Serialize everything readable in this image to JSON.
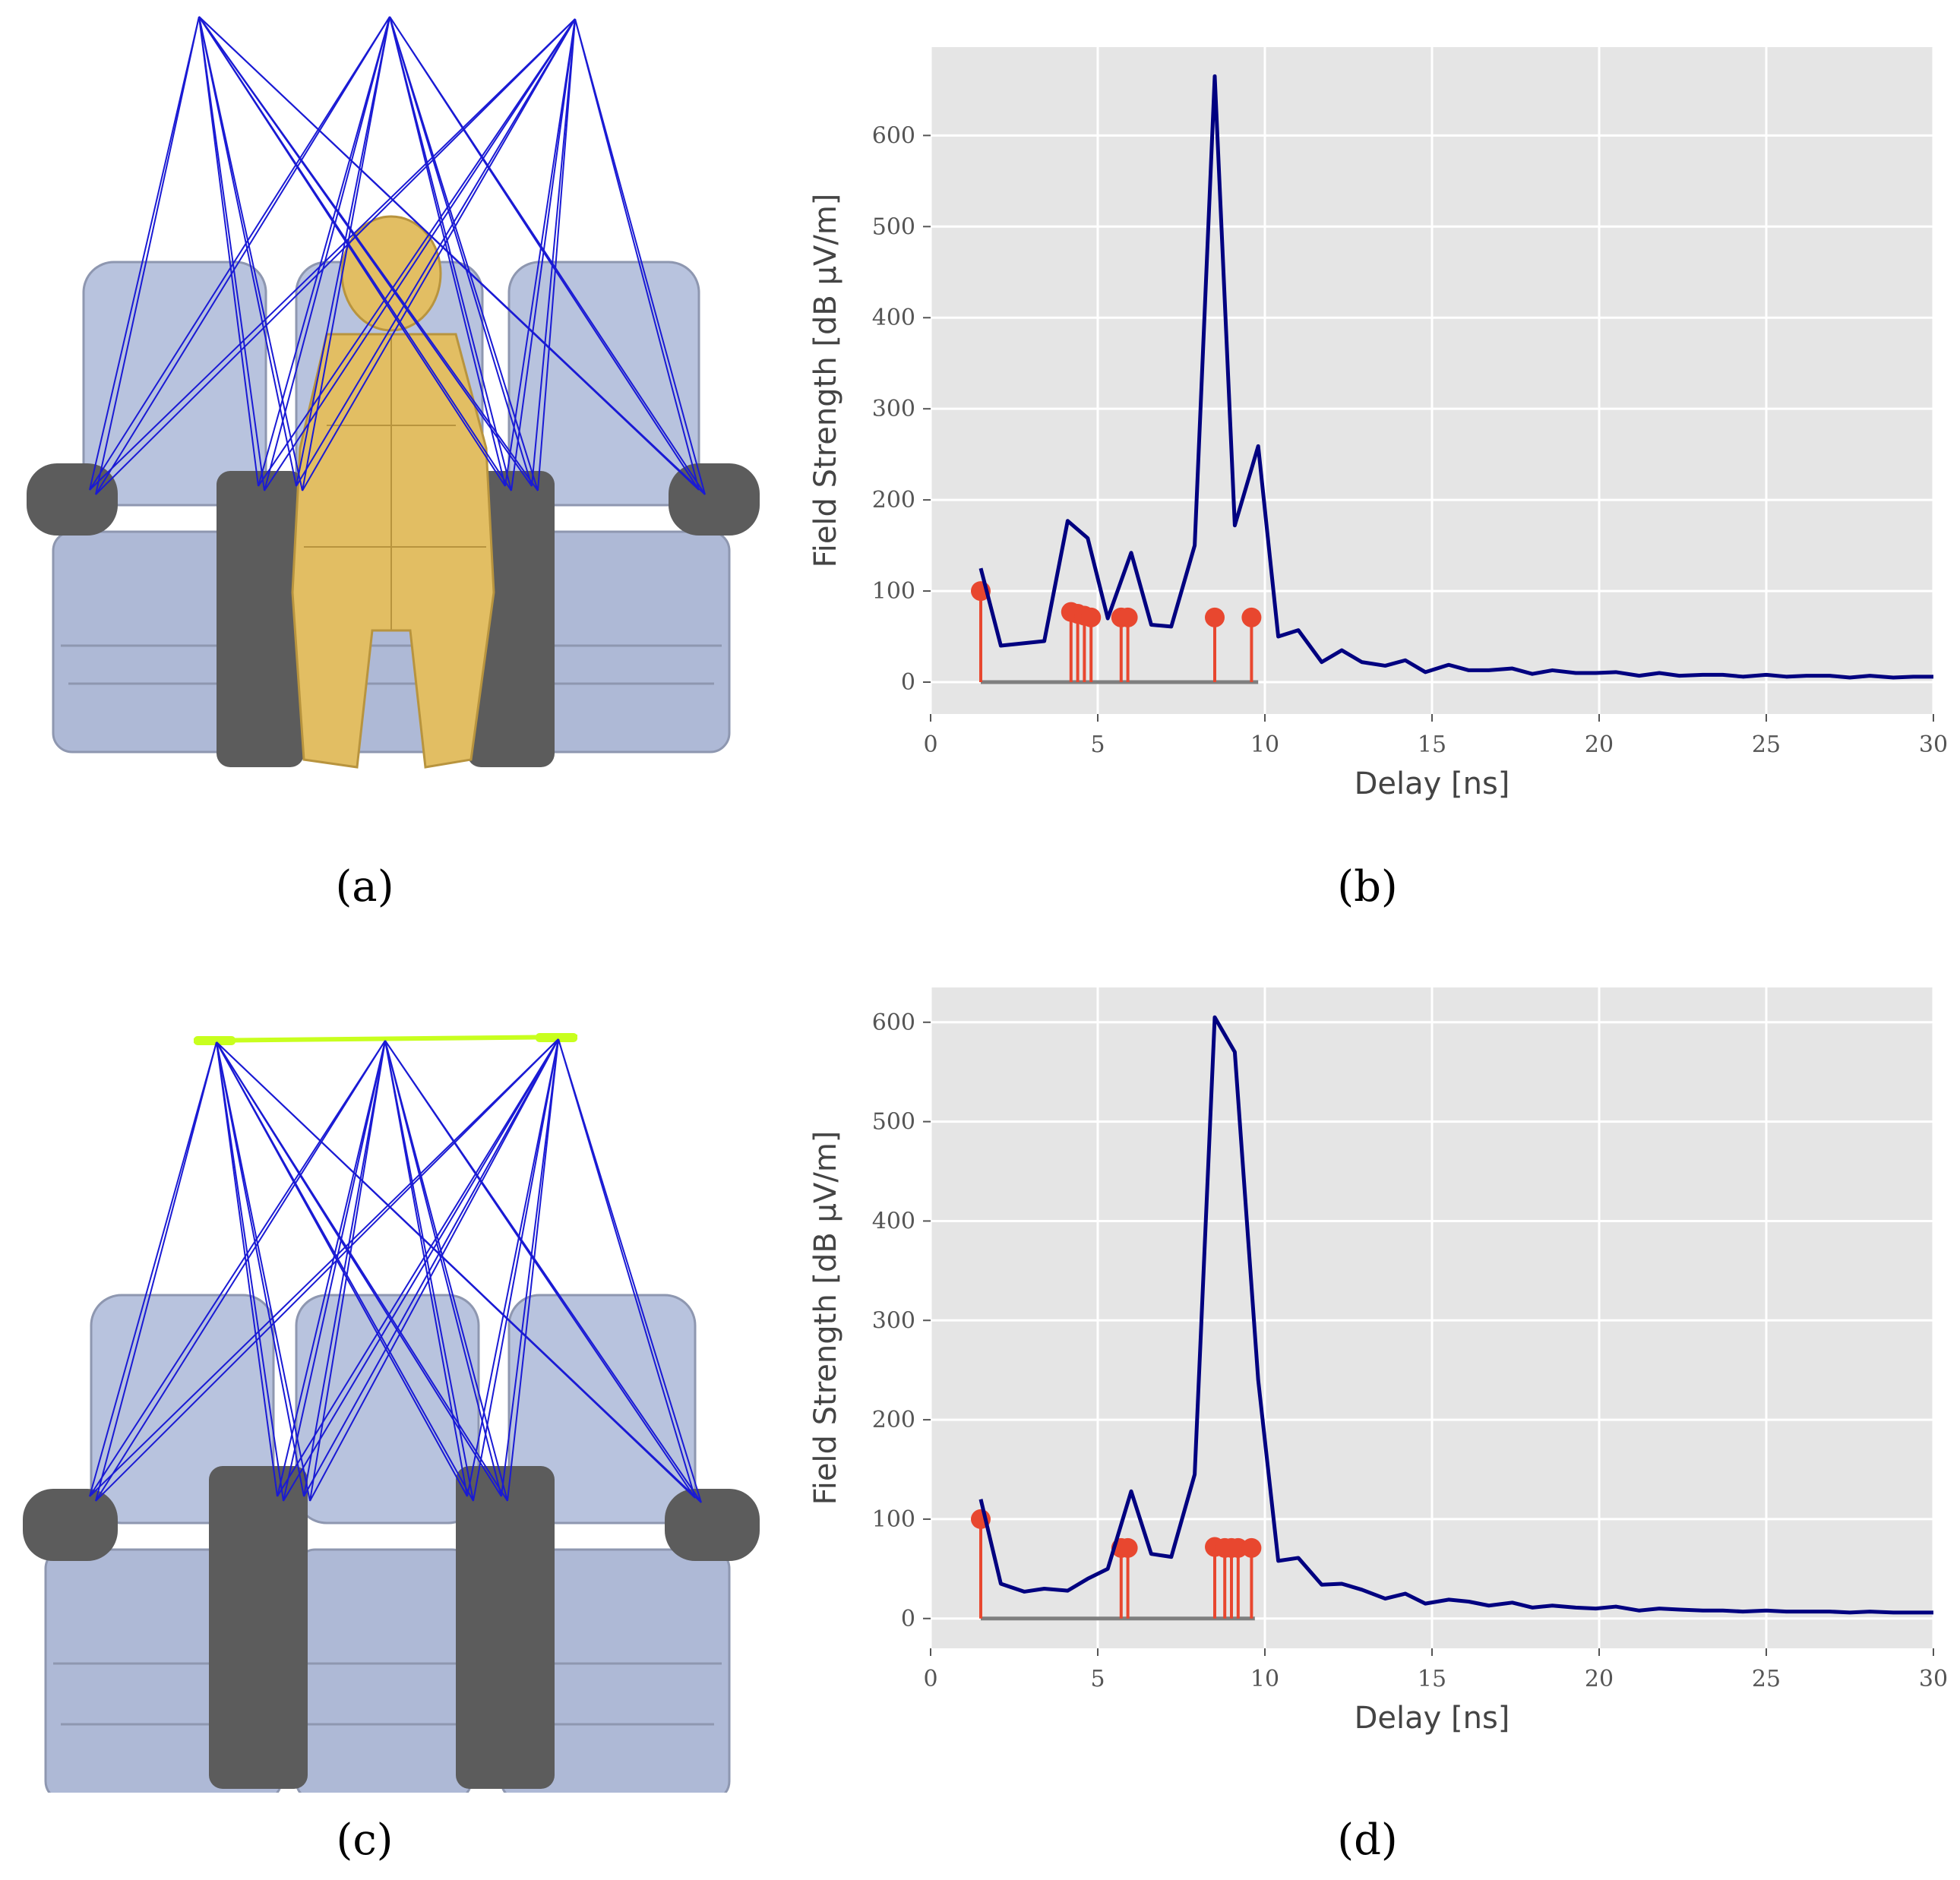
{
  "captions": {
    "a": "(a)",
    "b": "(b)",
    "c": "(c)",
    "d": "(d)"
  },
  "colors": {
    "panel_bg": "#e5e5e5",
    "grid": "#ffffff",
    "line": "#000080",
    "stem": "#e8472f",
    "baseline": "#7f7f7f",
    "ray": "#1a1ad4",
    "seat": "#b8c3de",
    "armrest": "#5c5c5c",
    "passenger": "#e2be63",
    "antenna": "#c8ff1e"
  },
  "icons": {
    "scene_a": "aircraft-seat-row-with-passenger-and-rays",
    "scene_c": "aircraft-seat-row-empty-with-rays"
  },
  "chart_data": [
    {
      "panel": "b",
      "type": "line",
      "xlabel": "Delay [ns]",
      "ylabel": "Field Strength [dB μV/m]",
      "xlim": [
        0,
        30
      ],
      "ylim": [
        -35,
        697
      ],
      "xticks": [
        0,
        5,
        10,
        15,
        20,
        25,
        30
      ],
      "yticks": [
        0,
        100,
        200,
        300,
        400,
        500,
        600
      ],
      "grid": true,
      "series": [
        {
          "kind": "line",
          "x": [
            1.5,
            2.1,
            3.4,
            4.1,
            4.7,
            5.3,
            6.0,
            6.6,
            7.2,
            7.9,
            8.5,
            9.1,
            9.8,
            10.4,
            11.0,
            11.7,
            12.3,
            12.9,
            13.6,
            14.2,
            14.8,
            15.5,
            16.1,
            16.7,
            17.4,
            18.0,
            18.6,
            19.3,
            19.9,
            20.5,
            21.2,
            21.8,
            22.4,
            23.1,
            23.7,
            24.3,
            25.0,
            25.6,
            26.2,
            26.9,
            27.5,
            28.1,
            28.8,
            29.4,
            30.0
          ],
          "y": [
            125,
            40,
            45,
            177,
            158,
            70,
            142,
            63,
            61,
            150,
            665,
            172,
            259,
            50,
            57,
            22,
            35,
            22,
            18,
            24,
            11,
            19,
            13,
            13,
            15,
            9,
            13,
            10,
            10,
            11,
            7,
            10,
            7,
            8,
            8,
            6,
            8,
            6,
            7,
            7,
            5,
            7,
            5,
            6,
            6
          ]
        },
        {
          "kind": "stem",
          "x": [
            1.5,
            4.2,
            4.4,
            4.6,
            4.8,
            5.7,
            5.9,
            8.5,
            9.6
          ],
          "y": [
            100,
            77,
            75,
            73,
            71,
            71,
            71,
            71,
            71
          ],
          "baseline_x": [
            1.5,
            9.8
          ]
        }
      ]
    },
    {
      "panel": "d",
      "type": "line",
      "xlabel": "Delay [ns]",
      "ylabel": "Field Strength [dB μV/m]",
      "xlim": [
        0,
        30
      ],
      "ylim": [
        -30,
        635
      ],
      "xticks": [
        0,
        5,
        10,
        15,
        20,
        25,
        30
      ],
      "yticks": [
        0,
        100,
        200,
        300,
        400,
        500,
        600
      ],
      "grid": true,
      "series": [
        {
          "kind": "line",
          "x": [
            1.5,
            2.1,
            2.8,
            3.4,
            4.1,
            4.7,
            5.3,
            6.0,
            6.6,
            7.2,
            7.9,
            8.5,
            9.1,
            9.8,
            10.4,
            11.0,
            11.7,
            12.3,
            12.9,
            13.6,
            14.2,
            14.8,
            15.5,
            16.1,
            16.7,
            17.4,
            18.0,
            18.6,
            19.3,
            19.9,
            20.5,
            21.2,
            21.8,
            22.4,
            23.1,
            23.7,
            24.3,
            25.0,
            25.6,
            26.2,
            26.9,
            27.5,
            28.1,
            28.8,
            29.4,
            30.0
          ],
          "y": [
            120,
            35,
            27,
            30,
            28,
            40,
            50,
            128,
            65,
            62,
            145,
            605,
            570,
            240,
            58,
            61,
            34,
            35,
            29,
            20,
            25,
            15,
            19,
            17,
            13,
            16,
            11,
            13,
            11,
            10,
            12,
            8,
            10,
            9,
            8,
            8,
            7,
            8,
            7,
            7,
            7,
            6,
            7,
            6,
            6,
            6
          ]
        },
        {
          "kind": "stem",
          "x": [
            1.5,
            5.7,
            5.9,
            8.5,
            8.8,
            9.0,
            9.2,
            9.6
          ],
          "y": [
            100,
            71,
            71,
            72,
            71,
            71,
            71,
            71
          ],
          "baseline_x": [
            1.5,
            9.7
          ]
        }
      ]
    }
  ]
}
